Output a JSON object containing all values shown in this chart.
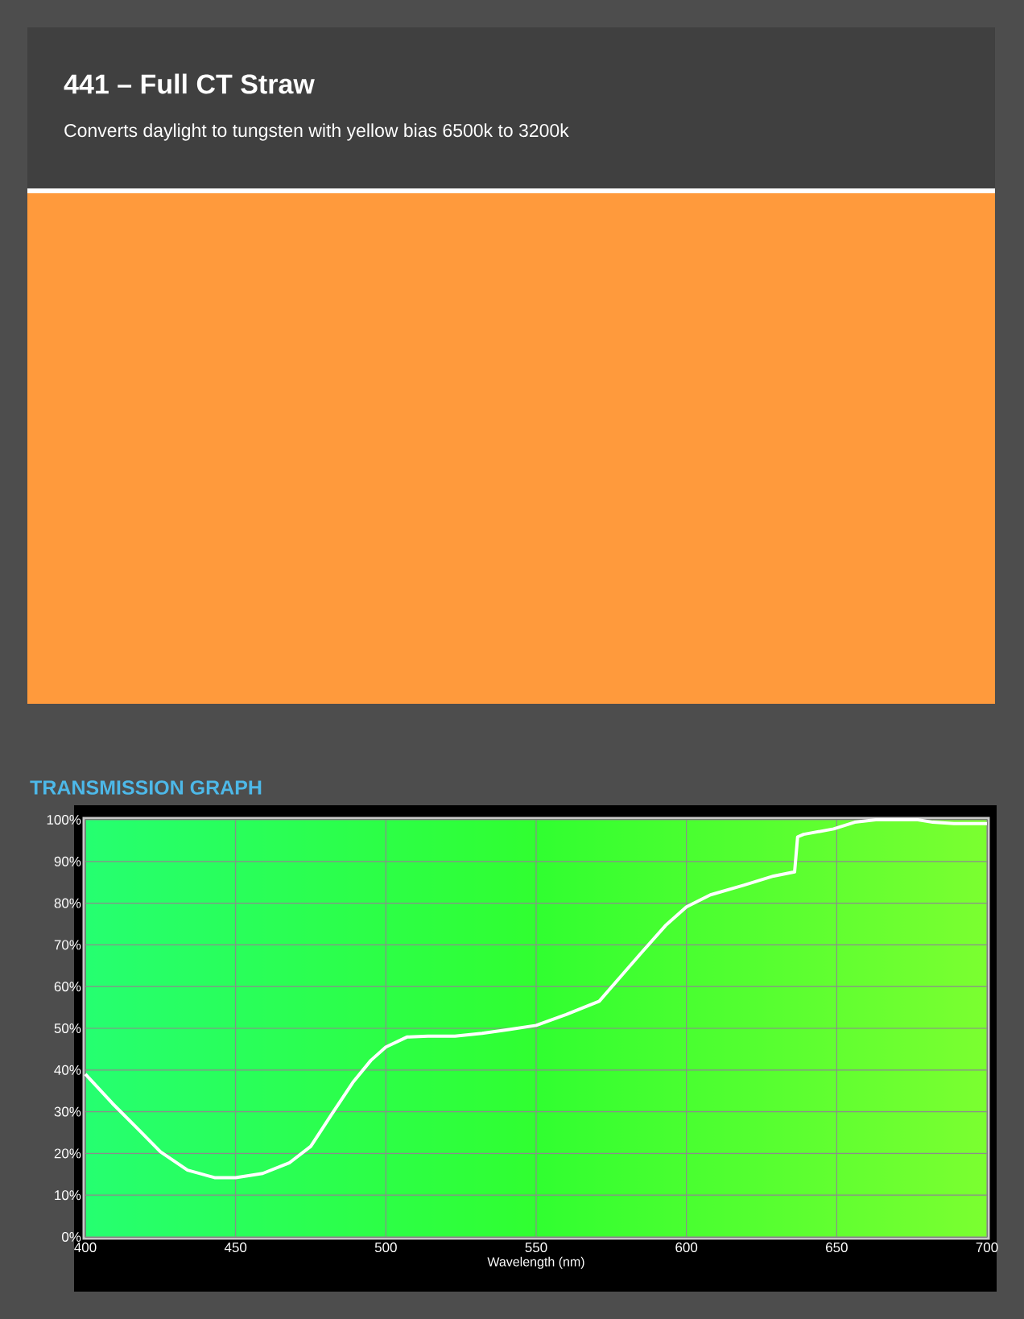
{
  "chart_data": {
    "type": "line",
    "title": "441 – Full CT Straw",
    "subtitle": "Converts daylight to tungsten with yellow bias 6500k to 3200k",
    "annotations": [
      "TRANSMISSION GRAPH"
    ],
    "xlabel": "Wavelength (nm)",
    "series": [
      {
        "color": "#ffffff",
        "x": [
          400,
          409,
          418,
          425,
          434,
          443,
          450,
          459,
          468,
          475,
          482,
          489,
          495,
          500,
          507,
          514,
          523,
          532,
          541,
          550,
          560,
          571,
          578,
          585,
          593,
          600,
          608,
          619,
          629,
          636,
          637,
          639,
          649,
          656,
          663,
          677,
          682,
          689,
          700
        ],
        "values": [
          39,
          32,
          25.5,
          20.4,
          16,
          14.2,
          14.2,
          15.2,
          17.8,
          21.7,
          29.4,
          37,
          42.3,
          45.5,
          47.9,
          48.1,
          48.1,
          48.8,
          49.7,
          50.7,
          53.3,
          56.5,
          62.3,
          68.1,
          74.6,
          79.1,
          82,
          84.3,
          86.5,
          87.5,
          95.9,
          96.5,
          97.8,
          99.4,
          100,
          100,
          99.4,
          99.1,
          99.1
        ]
      }
    ],
    "xlim": [
      400,
      700
    ],
    "ylim": [
      0,
      100
    ],
    "xticks": [
      400,
      450,
      500,
      550,
      600,
      650,
      700
    ],
    "yticks": [
      {
        "value": 0,
        "label": "0%"
      },
      {
        "value": 10,
        "label": "10%"
      },
      {
        "value": 20,
        "label": "20%"
      },
      {
        "value": 30,
        "label": "30%"
      },
      {
        "value": 40,
        "label": "40%"
      },
      {
        "value": 50,
        "label": "50%"
      },
      {
        "value": 60,
        "label": "60%"
      },
      {
        "value": 70,
        "label": "70%"
      },
      {
        "value": 80,
        "label": "80%"
      },
      {
        "value": 90,
        "label": "90%"
      },
      {
        "value": 100,
        "label": "100%"
      }
    ],
    "grid": true,
    "marker": "none",
    "line_style": "solid"
  }
}
